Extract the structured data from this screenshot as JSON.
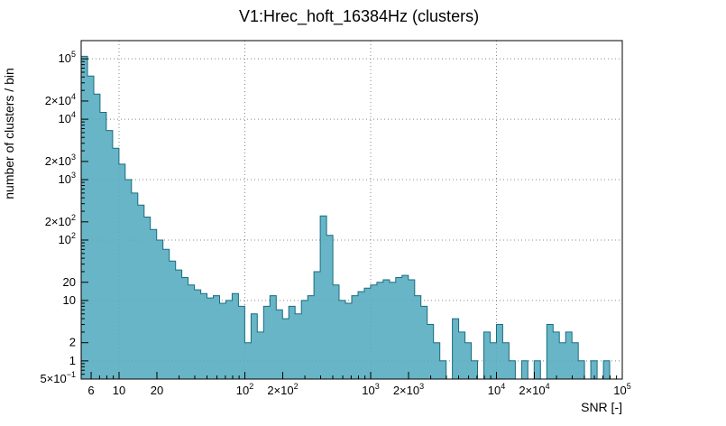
{
  "title": "V1:Hrec_hoft_16384Hz (clusters)",
  "chart_data": {
    "type": "bar",
    "title": "V1:Hrec_hoft_16384Hz (clusters)",
    "xlabel": "SNR [-]",
    "ylabel": "number of clusters / bin",
    "x_scale": "log",
    "y_scale": "log",
    "xlim": [
      5,
      100000
    ],
    "ylim": [
      0.5,
      200000
    ],
    "grid": "dotted",
    "legend": "none",
    "grid_x": [
      10,
      100,
      1000,
      10000,
      100000
    ],
    "grid_y": [
      1,
      10,
      100,
      1000,
      10000,
      100000
    ],
    "x_ticks": [
      {
        "v": 6,
        "t": "6"
      },
      {
        "v": 10,
        "t": "10"
      },
      {
        "v": 20,
        "t": "20"
      },
      {
        "v": 100,
        "t": "10",
        "e": "2"
      },
      {
        "v": 200,
        "t": "2×10",
        "e": "2"
      },
      {
        "v": 1000,
        "t": "10",
        "e": "3"
      },
      {
        "v": 2000,
        "t": "2×10",
        "e": "3"
      },
      {
        "v": 10000,
        "t": "10",
        "e": "4"
      },
      {
        "v": 20000,
        "t": "2×10",
        "e": "4"
      },
      {
        "v": 100000,
        "t": "10",
        "e": "5"
      }
    ],
    "y_ticks": [
      {
        "v": 0.5,
        "t": "5×10",
        "e": "−1"
      },
      {
        "v": 1,
        "t": "1"
      },
      {
        "v": 2,
        "t": "2"
      },
      {
        "v": 10,
        "t": "10"
      },
      {
        "v": 20,
        "t": "20"
      },
      {
        "v": 100,
        "t": "10",
        "e": "2"
      },
      {
        "v": 200,
        "t": "2×10",
        "e": "2"
      },
      {
        "v": 1000,
        "t": "10",
        "e": "3"
      },
      {
        "v": 2000,
        "t": "2×10",
        "e": "3"
      },
      {
        "v": 10000,
        "t": "10",
        "e": "4"
      },
      {
        "v": 20000,
        "t": "2×10",
        "e": "4"
      },
      {
        "v": 100000,
        "t": "10",
        "e": "5"
      }
    ],
    "colors": {
      "hist_fill": "#57adc0",
      "hist_stroke": "#1a6d80",
      "grid": "#888888",
      "axis": "#000000",
      "background": "#ffffff"
    },
    "bins": {
      "note": "log-spaced bins spanning xlim; values are counts per bin (0 = empty)",
      "values": [
        110000,
        52000,
        26000,
        13000,
        6500,
        3300,
        1800,
        1000,
        600,
        380,
        240,
        150,
        100,
        70,
        45,
        32,
        24,
        18,
        15,
        13,
        11,
        12,
        9,
        10,
        13,
        8,
        2,
        6,
        3,
        8,
        12,
        7,
        5,
        8,
        6,
        10,
        12,
        30,
        250,
        120,
        18,
        10,
        9,
        12,
        14,
        16,
        18,
        20,
        22,
        20,
        24,
        26,
        22,
        12,
        8,
        4,
        2,
        1,
        0,
        5,
        3,
        2,
        1,
        0,
        3,
        2,
        4,
        2,
        1,
        0,
        1,
        0,
        1,
        0,
        4,
        3,
        2,
        3,
        2,
        1,
        0,
        1,
        0,
        1,
        0,
        0
      ]
    }
  }
}
